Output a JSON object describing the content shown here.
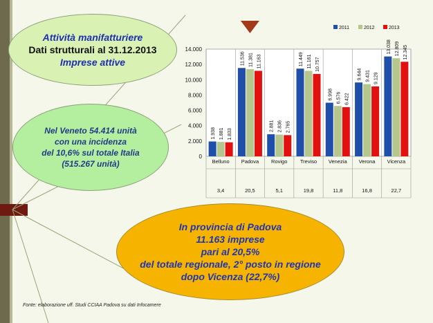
{
  "oval_top": {
    "line1": "Attività manifatturiere",
    "line2": "Dati strutturali al 31.12.2013",
    "line3": "Imprese attive"
  },
  "oval_mid": {
    "line1": "Nel Veneto  54.414 unità",
    "line2": "con una incidenza",
    "line3": "del 10,6% sul totale Italia",
    "line4": "(515.267 unità)"
  },
  "oval_bottom": {
    "line1": "In provincia di Padova",
    "line2": "11.163 imprese",
    "line3": "pari al 20,5%",
    "line4": "del totale regionale, 2° posto in regione",
    "line5": "dopo Vicenza (22,7%)"
  },
  "source": "Fonte: elaborazione uff. Studi CCIAA Padova su dati Infocamere",
  "chart_data": {
    "type": "bar",
    "categories": [
      "Belluno",
      "Padova",
      "Rovigo",
      "Treviso",
      "Venezia",
      "Verona",
      "Vicenza"
    ],
    "shares": [
      "3,4",
      "20,5",
      "5,1",
      "19,8",
      "11,8",
      "16,8",
      "22,7"
    ],
    "series": [
      {
        "name": "2011",
        "color": "#1f4fa8",
        "values": [
          1938,
          11536,
          2881,
          11449,
          6998,
          9644,
          13038
        ],
        "labels": [
          "1.938",
          "11.536",
          "2.881",
          "11.449",
          "6.998",
          "9.644",
          "13.038"
        ]
      },
      {
        "name": "2012",
        "color": "#b6c78e",
        "values": [
          1881,
          11381,
          2836,
          11161,
          6576,
          9431,
          12809
        ],
        "labels": [
          "1.881",
          "11.381",
          "2.836",
          "11.161",
          "6.576",
          "9.431",
          "12.809"
        ]
      },
      {
        "name": "2013",
        "color": "#e31010",
        "values": [
          1833,
          11163,
          2765,
          10757,
          6422,
          9129,
          12345
        ],
        "labels": [
          "1.833",
          "11.163",
          "2.765",
          "10.757",
          "6.422",
          "9.129",
          "12.345"
        ]
      }
    ],
    "yticks": [
      "0",
      "2.000",
      "4.000",
      "6.000",
      "8.000",
      "10.000",
      "12.000",
      "14.000"
    ],
    "ylim": [
      0,
      14000
    ],
    "legend_position": "top-right",
    "highlight_category": "Padova",
    "arrow_color": "#a23a1a"
  }
}
